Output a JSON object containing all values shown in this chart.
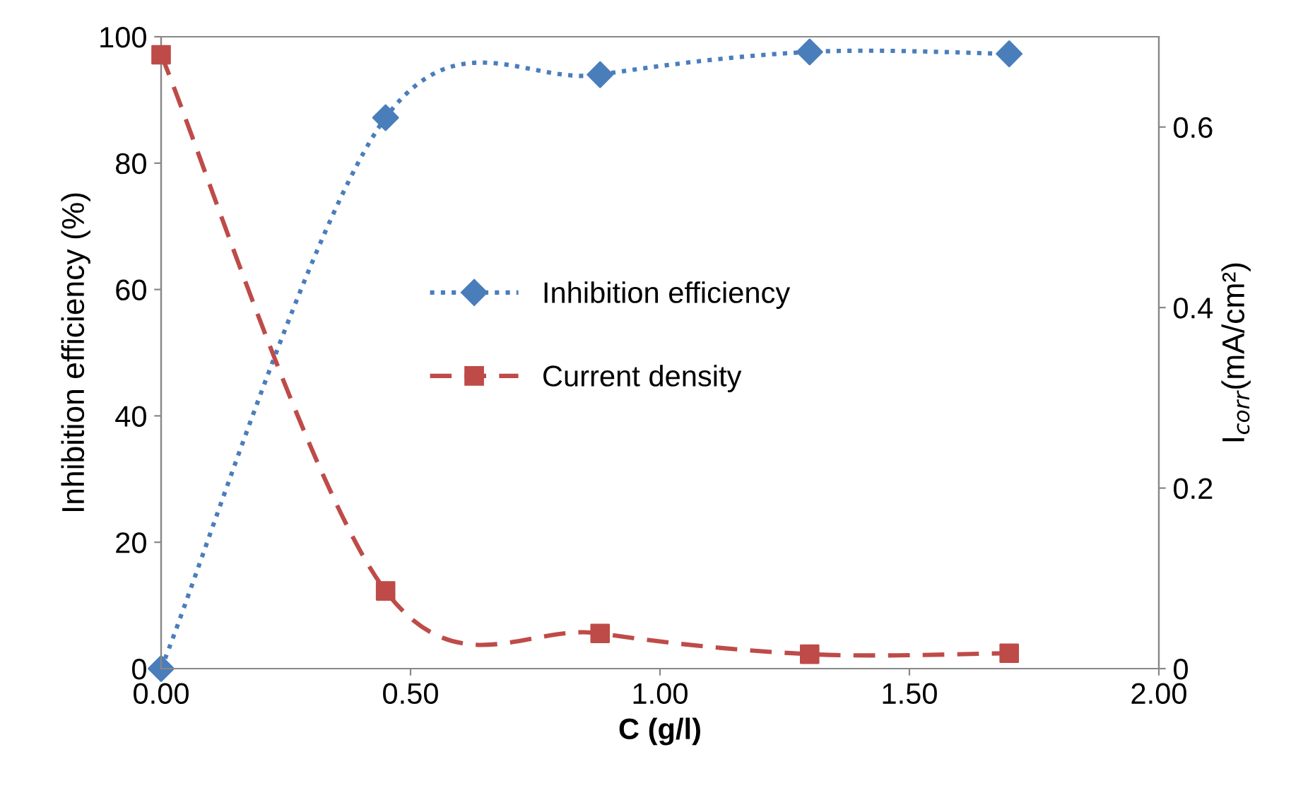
{
  "chart_data": {
    "type": "line",
    "xlabel": "C (g/l)",
    "ylabel": "Inhibition efficiency (%)",
    "y2label": "I$_{corr}$(mA/cm²)",
    "xlim": [
      0,
      2
    ],
    "xticks": [
      {
        "value": 0,
        "label": "0.00"
      },
      {
        "value": 0.5,
        "label": "0.50"
      },
      {
        "value": 1,
        "label": "1.00"
      },
      {
        "value": 1.5,
        "label": "1.50"
      },
      {
        "value": 2,
        "label": "2.00"
      }
    ],
    "ylim": [
      0,
      100
    ],
    "yticks": [
      0,
      20,
      40,
      60,
      80,
      100
    ],
    "y2lim": [
      0,
      0.7
    ],
    "y2ticks": [
      0,
      0.2,
      0.4,
      0.6
    ],
    "grid": false,
    "legend": "center",
    "series": [
      {
        "name": "Inhibition efficiency",
        "color": "#4a7ebb",
        "x": [
          0,
          0.45,
          0.88,
          1.3,
          1.7
        ],
        "values": [
          0,
          87.2,
          94,
          97.6,
          97.3
        ],
        "marker": "diamond",
        "line_style": "dotted"
      },
      {
        "name": "Current density",
        "color": "#be4b48",
        "axis": "y2",
        "x": [
          0,
          0.45,
          0.88,
          1.3,
          1.7
        ],
        "values": [
          0.68,
          0.086,
          0.039,
          0.016,
          0.017
        ],
        "marker": "square",
        "line_style": "dashed"
      }
    ]
  }
}
